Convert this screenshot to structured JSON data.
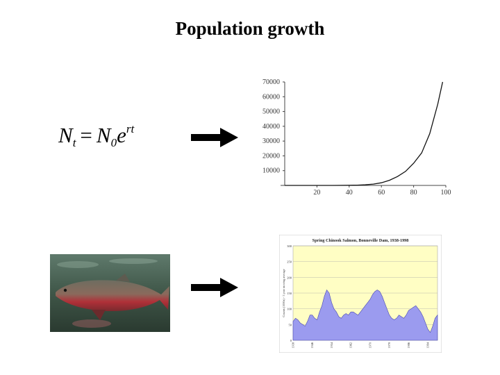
{
  "slide": {
    "title": "Population growth"
  },
  "formula": {
    "N": "N",
    "t": "t",
    "equals": "=",
    "N0": "N",
    "zero": "0",
    "e": "e",
    "rt": "rt"
  },
  "growth_chart": {
    "chart_data": {
      "type": "line",
      "title": "",
      "xlabel": "",
      "ylabel": "",
      "x_ticks": [
        20,
        40,
        60,
        80,
        100
      ],
      "y_ticks": [
        10000,
        20000,
        30000,
        40000,
        50000,
        60000,
        70000
      ],
      "xlim": [
        0,
        100
      ],
      "ylim": [
        0,
        70000
      ],
      "series": [
        {
          "x": [
            0,
            20,
            30,
            40,
            45,
            50,
            55,
            60,
            65,
            70,
            75,
            80,
            85,
            90,
            95,
            98
          ],
          "y": [
            1,
            5,
            20,
            100,
            200,
            450,
            900,
            1800,
            3500,
            6000,
            9500,
            15000,
            22000,
            35000,
            55000,
            70000
          ]
        }
      ]
    }
  },
  "salmon_chart": {
    "title": "Spring Chinook Salmon, Bonneville Dam, 1938-1998",
    "ylabel": "Counts (1000s) - 3 year moving average",
    "background": "#fffec4",
    "fill_color": "#9b9bef",
    "chart_data": {
      "type": "area",
      "title": "Spring Chinook Salmon, Bonneville Dam, 1938-1998",
      "ylabel": "Counts (1000s) - 3 year moving average",
      "y_ticks": [
        0,
        50,
        100,
        150,
        200,
        250,
        300
      ],
      "x_ticks": [
        "1938",
        "1946",
        "1954",
        "1962",
        "1970",
        "1978",
        "1986",
        "1994"
      ],
      "ylim": [
        0,
        300
      ],
      "xlim": [
        1938,
        1998
      ],
      "series": [
        {
          "x": [
            1938,
            1939,
            1940,
            1941,
            1942,
            1943,
            1944,
            1945,
            1946,
            1947,
            1948,
            1949,
            1950,
            1951,
            1952,
            1953,
            1954,
            1955,
            1956,
            1957,
            1958,
            1959,
            1960,
            1961,
            1962,
            1963,
            1964,
            1965,
            1966,
            1967,
            1968,
            1969,
            1970,
            1971,
            1972,
            1973,
            1974,
            1975,
            1976,
            1977,
            1978,
            1979,
            1980,
            1981,
            1982,
            1983,
            1984,
            1985,
            1986,
            1987,
            1988,
            1989,
            1990,
            1991,
            1992,
            1993,
            1994,
            1995,
            1996,
            1997,
            1998
          ],
          "y": [
            60,
            70,
            65,
            55,
            50,
            45,
            60,
            80,
            80,
            70,
            65,
            90,
            110,
            140,
            160,
            150,
            120,
            100,
            90,
            75,
            70,
            80,
            85,
            80,
            90,
            90,
            85,
            80,
            90,
            100,
            110,
            120,
            130,
            145,
            155,
            160,
            155,
            140,
            120,
            100,
            80,
            70,
            65,
            70,
            80,
            75,
            70,
            80,
            95,
            100,
            105,
            110,
            100,
            90,
            75,
            55,
            35,
            25,
            45,
            70,
            80
          ]
        }
      ]
    }
  }
}
